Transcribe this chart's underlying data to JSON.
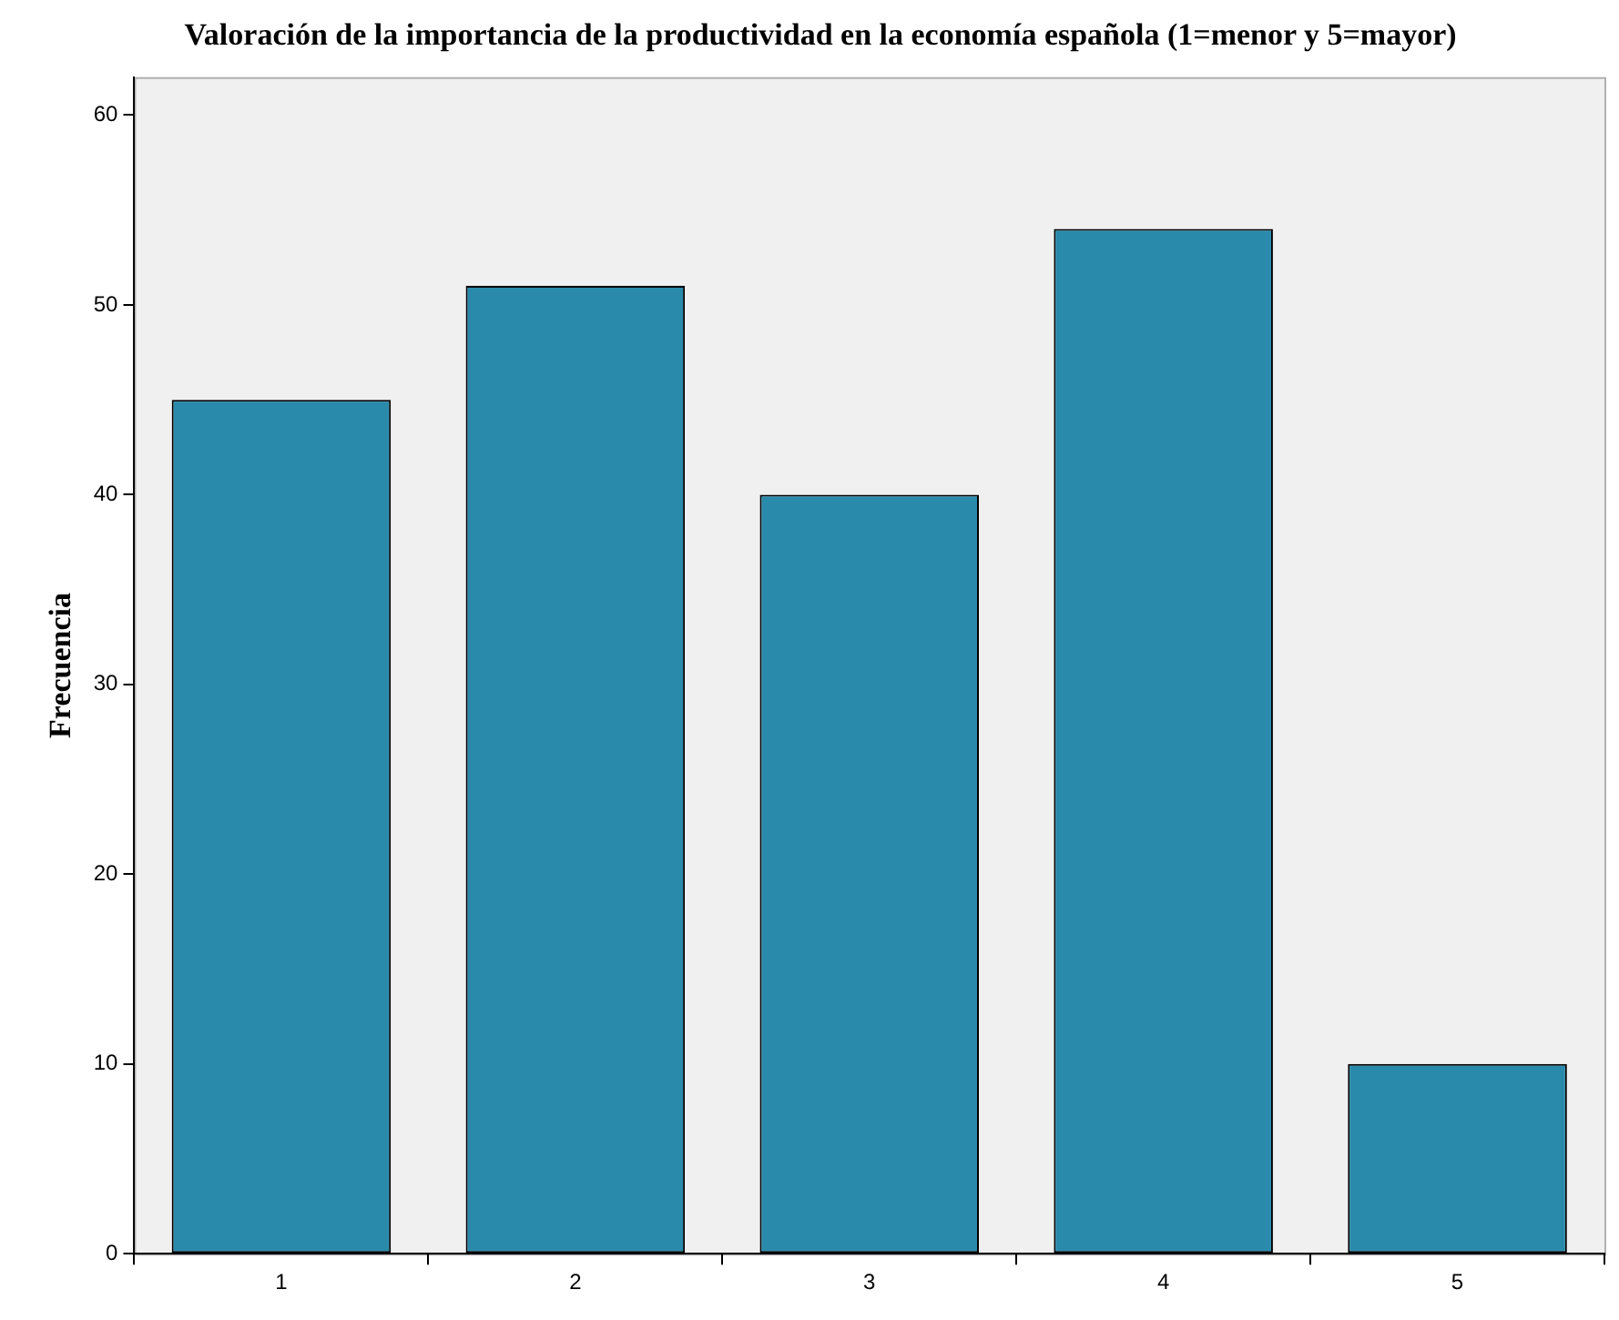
{
  "chart_data": {
    "type": "bar",
    "title": "Valoración de la importancia de la productividad en la economía española (1=menor y 5=mayor)",
    "ylabel": "Frecuencia",
    "categories": [
      "1",
      "2",
      "3",
      "4",
      "5"
    ],
    "values": [
      45,
      51,
      40,
      54,
      10
    ],
    "color": "#2a8aab",
    "ylim": [
      0,
      62
    ],
    "yticks": [
      0,
      10,
      20,
      30,
      40,
      50,
      60
    ],
    "grid": false,
    "legend": false
  }
}
